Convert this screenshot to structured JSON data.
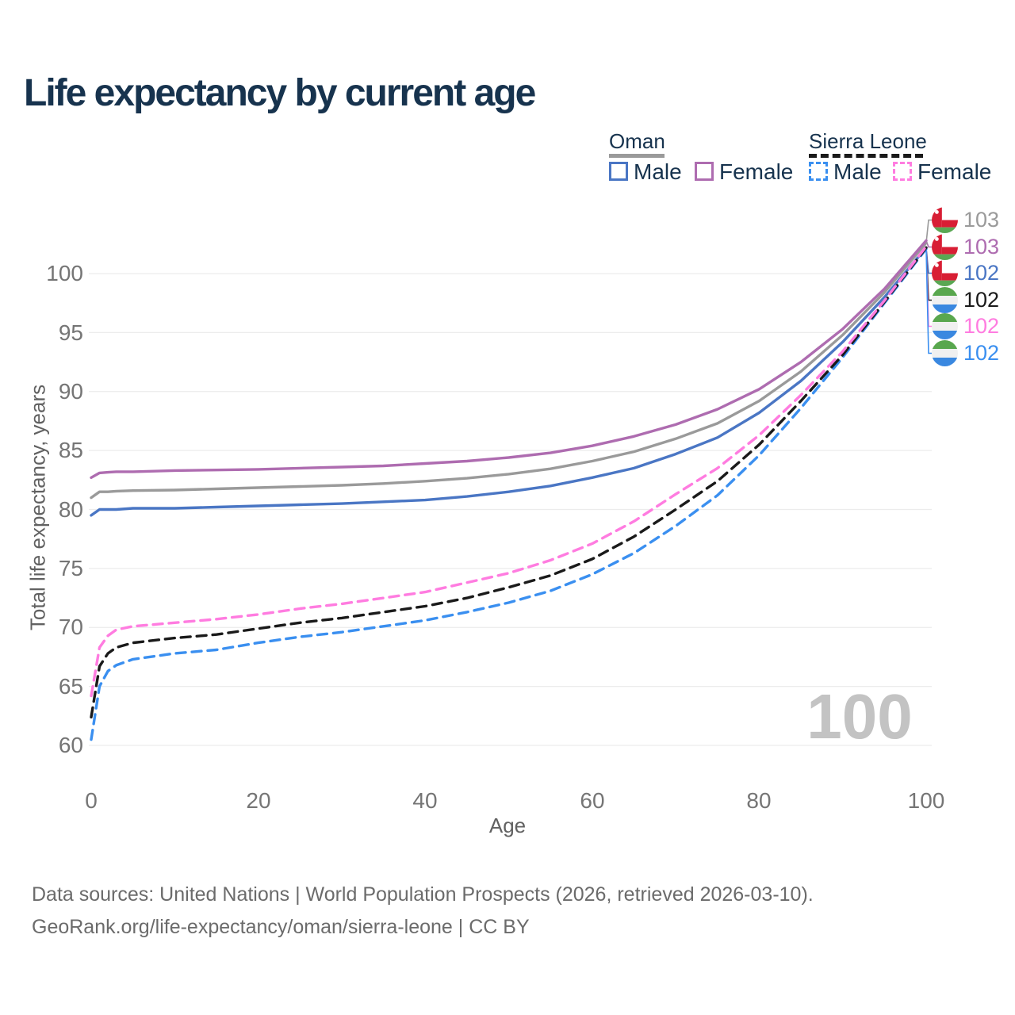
{
  "title": "Life expectancy by current age",
  "legend": {
    "groups": [
      {
        "country": "Oman",
        "line_style": "solid",
        "underline_color": "#9a9a9a",
        "items": [
          {
            "label": "Male",
            "color": "#4a76c4"
          },
          {
            "label": "Female",
            "color": "#ae6cb0"
          }
        ]
      },
      {
        "country": "Sierra Leone",
        "line_style": "dashed",
        "underline_color": "#1a1a1a",
        "items": [
          {
            "label": "Male",
            "color": "#3a8ff0"
          },
          {
            "label": "Female",
            "color": "#ff7ce0"
          }
        ]
      }
    ]
  },
  "chart_data": {
    "type": "line",
    "title": "Life expectancy by current age",
    "xlabel": "Age",
    "ylabel": "Total life expectancy, years",
    "xlim": [
      0,
      100
    ],
    "ylim": [
      60,
      103
    ],
    "x_ticks": [
      0,
      20,
      40,
      60,
      80,
      100
    ],
    "y_ticks": [
      60,
      65,
      70,
      75,
      80,
      85,
      90,
      95,
      100
    ],
    "grid": "horizontal",
    "legend_position": "top-right",
    "x": [
      0,
      1,
      2,
      3,
      5,
      10,
      15,
      20,
      25,
      30,
      35,
      40,
      45,
      50,
      55,
      60,
      65,
      70,
      75,
      80,
      85,
      90,
      95,
      100
    ],
    "series": [
      {
        "name": "Oman",
        "color": "#9a9a9a",
        "dash": "solid",
        "values": [
          81.0,
          81.5,
          81.5,
          81.55,
          81.6,
          81.65,
          81.75,
          81.85,
          81.95,
          82.05,
          82.2,
          82.4,
          82.65,
          83.0,
          83.45,
          84.1,
          84.9,
          86.0,
          87.3,
          89.2,
          91.7,
          94.8,
          98.4,
          102.6
        ]
      },
      {
        "name": "Oman Female",
        "color": "#ae6cb0",
        "dash": "solid",
        "values": [
          82.7,
          83.1,
          83.15,
          83.2,
          83.2,
          83.3,
          83.35,
          83.4,
          83.5,
          83.6,
          83.7,
          83.9,
          84.1,
          84.4,
          84.8,
          85.4,
          86.2,
          87.2,
          88.5,
          90.2,
          92.5,
          95.3,
          98.7,
          102.8
        ]
      },
      {
        "name": "Oman Male",
        "color": "#4a76c4",
        "dash": "solid",
        "values": [
          79.5,
          80.0,
          80.0,
          80.0,
          80.1,
          80.1,
          80.2,
          80.3,
          80.4,
          80.5,
          80.65,
          80.8,
          81.1,
          81.5,
          82.0,
          82.7,
          83.5,
          84.7,
          86.1,
          88.2,
          90.9,
          94.2,
          98.0,
          102.2
        ]
      },
      {
        "name": "Sierra Leone",
        "color": "#1a1a1a",
        "dash": "dashed",
        "values": [
          62.4,
          66.7,
          67.8,
          68.3,
          68.7,
          69.1,
          69.4,
          69.9,
          70.4,
          70.8,
          71.3,
          71.8,
          72.5,
          73.4,
          74.4,
          75.8,
          77.7,
          80.0,
          82.4,
          85.5,
          89.2,
          93.1,
          97.6,
          102.2
        ]
      },
      {
        "name": "Sierra Leone Female",
        "color": "#ff7ce0",
        "dash": "dashed",
        "values": [
          64.2,
          68.3,
          69.3,
          69.8,
          70.1,
          70.4,
          70.7,
          71.1,
          71.6,
          72.0,
          72.5,
          73.0,
          73.8,
          74.6,
          75.7,
          77.1,
          79.0,
          81.3,
          83.5,
          86.3,
          89.7,
          93.4,
          97.7,
          102.3
        ]
      },
      {
        "name": "Sierra Leone Male",
        "color": "#3a8ff0",
        "dash": "dashed",
        "values": [
          60.5,
          65.0,
          66.3,
          66.8,
          67.3,
          67.8,
          68.1,
          68.7,
          69.2,
          69.6,
          70.1,
          70.6,
          71.3,
          72.1,
          73.1,
          74.5,
          76.3,
          78.6,
          81.2,
          84.6,
          88.6,
          92.9,
          97.5,
          102.1
        ]
      }
    ]
  },
  "right_labels": [
    {
      "flag": "oman",
      "value": "103",
      "color": "#9a9a9a"
    },
    {
      "flag": "oman",
      "value": "103",
      "color": "#ae6cb0"
    },
    {
      "flag": "oman",
      "value": "102",
      "color": "#4a76c4"
    },
    {
      "flag": "sierra-leone",
      "value": "102",
      "color": "#1a1a1a"
    },
    {
      "flag": "sierra-leone",
      "value": "102",
      "color": "#ff7ce0"
    },
    {
      "flag": "sierra-leone",
      "value": "102",
      "color": "#3a8ff0"
    }
  ],
  "watermark": "100",
  "footer": {
    "line1": "Data sources: United Nations | World Population Prospects (2026, retrieved 2026-03-10).",
    "line2": "GeoRank.org/life-expectancy/oman/sierra-leone | CC BY"
  },
  "colors": {
    "title_text": "#17334e",
    "axis_text": "#757575",
    "grid": "#ececec",
    "watermark": "#c3c3c3",
    "footer_text": "#6b6b6b"
  }
}
